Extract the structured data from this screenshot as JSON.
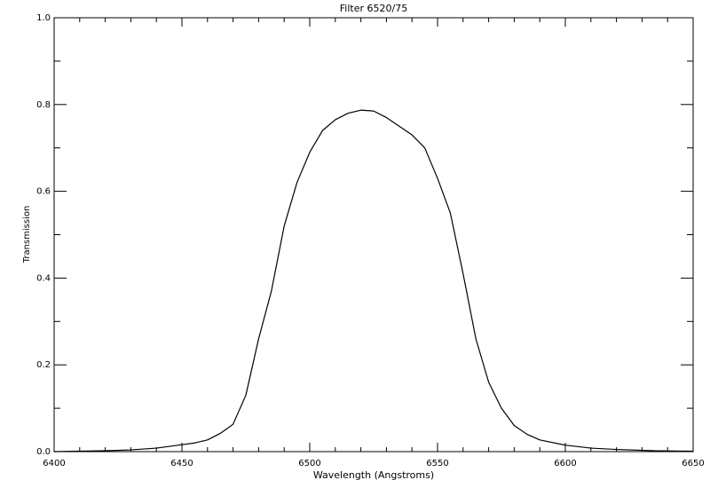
{
  "chart_data": {
    "type": "line",
    "title": "Filter 6520/75",
    "xlabel": "Wavelength (Angstroms)",
    "ylabel": "Transmission",
    "x": [
      6400,
      6420,
      6430,
      6440,
      6450,
      6455,
      6460,
      6465,
      6470,
      6475,
      6480,
      6485,
      6490,
      6495,
      6500,
      6505,
      6510,
      6515,
      6520,
      6525,
      6530,
      6535,
      6540,
      6545,
      6550,
      6555,
      6560,
      6565,
      6570,
      6575,
      6580,
      6585,
      6590,
      6600,
      6610,
      6620,
      6635,
      6650
    ],
    "series": [
      {
        "name": "Transmission",
        "color": "#000000",
        "values": [
          0.0,
          0.002,
          0.004,
          0.008,
          0.016,
          0.02,
          0.027,
          0.042,
          0.063,
          0.13,
          0.26,
          0.37,
          0.52,
          0.62,
          0.69,
          0.74,
          0.765,
          0.78,
          0.787,
          0.785,
          0.77,
          0.75,
          0.73,
          0.7,
          0.63,
          0.55,
          0.41,
          0.26,
          0.16,
          0.1,
          0.06,
          0.04,
          0.027,
          0.015,
          0.008,
          0.005,
          0.002,
          0.001
        ]
      }
    ],
    "xlim": [
      6400,
      6650
    ],
    "xticks": [
      6400,
      6450,
      6500,
      6550,
      6600,
      6650
    ],
    "ylim": [
      0,
      1
    ],
    "yticks": [
      {
        "value": 0,
        "label": "0.0"
      },
      {
        "value": 0.2,
        "label": "0.2"
      },
      {
        "value": 0.4,
        "label": "0.4"
      },
      {
        "value": 0.6,
        "label": "0.6"
      },
      {
        "value": 0.8,
        "label": "0.8"
      },
      {
        "value": 1,
        "label": "1.0"
      }
    ],
    "grid": false
  }
}
